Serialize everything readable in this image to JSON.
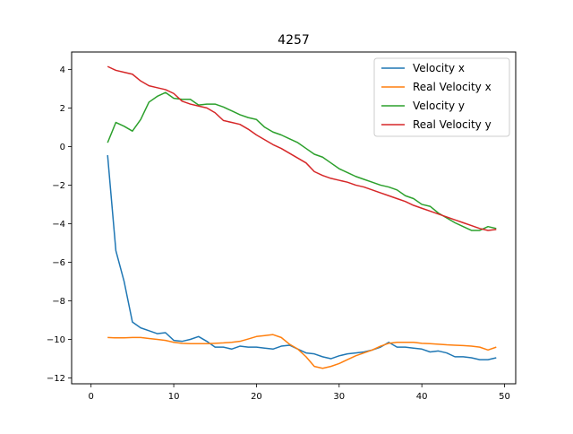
{
  "chart_data": {
    "type": "line",
    "title": "4257",
    "xlabel": "",
    "ylabel": "",
    "xlim": [
      -2.35,
      51.35
    ],
    "ylim": [
      -12.3,
      4.9
    ],
    "xticks": [
      0,
      10,
      20,
      30,
      40,
      50
    ],
    "yticks": [
      -12,
      -10,
      -8,
      -6,
      -4,
      -2,
      0,
      2,
      4
    ],
    "grid": false,
    "legend_position": "top-right",
    "x": [
      2,
      3,
      4,
      5,
      6,
      7,
      8,
      9,
      10,
      11,
      12,
      13,
      14,
      15,
      16,
      17,
      18,
      19,
      20,
      21,
      22,
      23,
      24,
      25,
      26,
      27,
      28,
      29,
      30,
      31,
      32,
      33,
      34,
      35,
      36,
      37,
      38,
      39,
      40,
      41,
      42,
      43,
      44,
      45,
      46,
      47,
      48,
      49
    ],
    "series": [
      {
        "name": "Velocity x",
        "color": "#1f77b4",
        "values": [
          -0.45,
          -5.4,
          -7.0,
          -9.1,
          -9.4,
          -9.55,
          -9.7,
          -9.65,
          -10.05,
          -10.1,
          -10.0,
          -9.85,
          -10.1,
          -10.4,
          -10.4,
          -10.5,
          -10.35,
          -10.4,
          -10.4,
          -10.45,
          -10.5,
          -10.35,
          -10.3,
          -10.5,
          -10.7,
          -10.75,
          -10.9,
          -11.0,
          -10.85,
          -10.75,
          -10.7,
          -10.65,
          -10.55,
          -10.4,
          -10.15,
          -10.4,
          -10.4,
          -10.45,
          -10.5,
          -10.65,
          -10.6,
          -10.7,
          -10.9,
          -10.9,
          -10.95,
          -11.05,
          -11.05,
          -10.95
        ]
      },
      {
        "name": "Real Velocity x",
        "color": "#ff7f0e",
        "values": [
          -9.9,
          -9.92,
          -9.92,
          -9.9,
          -9.9,
          -9.95,
          -10.0,
          -10.05,
          -10.15,
          -10.2,
          -10.22,
          -10.22,
          -10.22,
          -10.2,
          -10.18,
          -10.15,
          -10.1,
          -9.98,
          -9.85,
          -9.8,
          -9.75,
          -9.9,
          -10.25,
          -10.5,
          -10.9,
          -11.4,
          -11.5,
          -11.4,
          -11.25,
          -11.05,
          -10.85,
          -10.7,
          -10.55,
          -10.35,
          -10.2,
          -10.15,
          -10.15,
          -10.15,
          -10.2,
          -10.22,
          -10.25,
          -10.28,
          -10.3,
          -10.32,
          -10.35,
          -10.4,
          -10.55,
          -10.4
        ]
      },
      {
        "name": "Velocity y",
        "color": "#2ca02c",
        "values": [
          0.2,
          1.25,
          1.05,
          0.8,
          1.4,
          2.3,
          2.6,
          2.8,
          2.5,
          2.45,
          2.45,
          2.15,
          2.2,
          2.2,
          2.05,
          1.85,
          1.65,
          1.5,
          1.4,
          1.0,
          0.75,
          0.6,
          0.4,
          0.2,
          -0.1,
          -0.4,
          -0.55,
          -0.85,
          -1.15,
          -1.35,
          -1.55,
          -1.7,
          -1.85,
          -2.0,
          -2.1,
          -2.25,
          -2.55,
          -2.7,
          -3.0,
          -3.1,
          -3.45,
          -3.7,
          -3.95,
          -4.15,
          -4.35,
          -4.35,
          -4.15,
          -4.25
        ]
      },
      {
        "name": "Real Velocity y",
        "color": "#d62728",
        "values": [
          4.15,
          3.95,
          3.85,
          3.75,
          3.4,
          3.15,
          3.05,
          2.95,
          2.75,
          2.35,
          2.2,
          2.1,
          2.0,
          1.75,
          1.35,
          1.25,
          1.15,
          0.9,
          0.6,
          0.35,
          0.1,
          -0.1,
          -0.35,
          -0.6,
          -0.85,
          -1.3,
          -1.5,
          -1.65,
          -1.75,
          -1.85,
          -2.0,
          -2.1,
          -2.25,
          -2.4,
          -2.55,
          -2.7,
          -2.85,
          -3.05,
          -3.2,
          -3.35,
          -3.5,
          -3.65,
          -3.8,
          -3.95,
          -4.1,
          -4.25,
          -4.35,
          -4.3
        ]
      }
    ]
  }
}
